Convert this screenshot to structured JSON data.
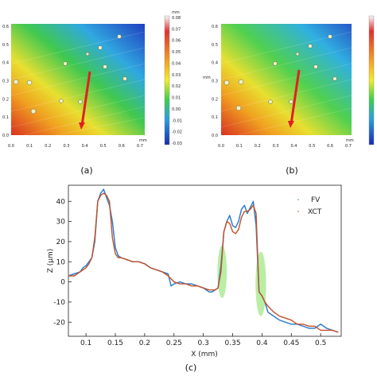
{
  "panels": {
    "a": {
      "caption": "(a)",
      "x_ticks": [
        "0.0",
        "0.1",
        "0.2",
        "0.3",
        "0.4",
        "0.5",
        "0.6",
        "0.7"
      ],
      "y_ticks": [
        "0.0",
        "0.1",
        "0.2",
        "0.3",
        "0.4",
        "0.5",
        "0.6"
      ],
      "unit": "mm",
      "colorbar_unit": "mm",
      "colorbar_ticks": [
        "0.08",
        "0.07",
        "0.06",
        "0.05",
        "0.04",
        "0.03",
        "0.02",
        "0.01",
        "0.00",
        "-0.01",
        "-0.02",
        "-0.03"
      ]
    },
    "b": {
      "caption": "(b)",
      "x_ticks": [
        "0.0",
        "0.1",
        "0.2",
        "0.3",
        "0.4",
        "0.5",
        "0.6",
        "0.7"
      ],
      "y_ticks": [
        "0.0",
        "0.1",
        "0.2",
        "0.3",
        "0.4",
        "0.5",
        "0.6"
      ],
      "unit": "mm"
    }
  },
  "chart_data": {
    "type": "line",
    "caption": "(c)",
    "xlabel": "X (mm)",
    "ylabel": "Z (μm)",
    "xlim": [
      0.07,
      0.535
    ],
    "ylim": [
      -27,
      48
    ],
    "x_ticks": [
      "0.1",
      "0.15",
      "0.2",
      "0.25",
      "0.3",
      "0.35",
      "0.4",
      "0.45",
      "0.5"
    ],
    "y_ticks": [
      "40",
      "30",
      "20",
      "10",
      "0",
      "-10",
      "-20"
    ],
    "legend": "top-right",
    "grid": false,
    "series": [
      {
        "name": "FV",
        "color": "#2f7fce",
        "x": [
          0.07,
          0.08,
          0.09,
          0.095,
          0.1,
          0.105,
          0.11,
          0.115,
          0.12,
          0.125,
          0.13,
          0.135,
          0.14,
          0.145,
          0.15,
          0.155,
          0.16,
          0.17,
          0.18,
          0.19,
          0.2,
          0.21,
          0.22,
          0.23,
          0.24,
          0.245,
          0.25,
          0.26,
          0.27,
          0.28,
          0.29,
          0.3,
          0.31,
          0.315,
          0.32,
          0.325,
          0.33,
          0.335,
          0.34,
          0.345,
          0.35,
          0.355,
          0.36,
          0.365,
          0.37,
          0.375,
          0.38,
          0.385,
          0.39,
          0.395,
          0.4,
          0.405,
          0.41,
          0.42,
          0.43,
          0.44,
          0.45,
          0.46,
          0.47,
          0.48,
          0.49,
          0.5,
          0.51,
          0.52,
          0.53
        ],
        "y": [
          3,
          4,
          5,
          7,
          8,
          10,
          12,
          20,
          40,
          44,
          46,
          42,
          38,
          30,
          17,
          13,
          12,
          11,
          10,
          10,
          9,
          7,
          6,
          5,
          4,
          -2,
          -1,
          0,
          -1,
          -1,
          -2,
          -3,
          -5,
          -5,
          -4,
          -3,
          8,
          25,
          30,
          33,
          28,
          27,
          30,
          36,
          38,
          34,
          37,
          40,
          28,
          -5,
          -7,
          -10,
          -15,
          -17,
          -19,
          -20,
          -21,
          -21,
          -22,
          -23,
          -23,
          -21,
          -23,
          -24,
          -25
        ]
      },
      {
        "name": "XCT",
        "color": "#c4502a",
        "x": [
          0.07,
          0.08,
          0.09,
          0.1,
          0.105,
          0.11,
          0.115,
          0.12,
          0.125,
          0.13,
          0.135,
          0.14,
          0.145,
          0.15,
          0.155,
          0.16,
          0.17,
          0.18,
          0.19,
          0.2,
          0.21,
          0.22,
          0.23,
          0.24,
          0.25,
          0.26,
          0.27,
          0.28,
          0.29,
          0.3,
          0.31,
          0.32,
          0.325,
          0.33,
          0.335,
          0.34,
          0.345,
          0.35,
          0.355,
          0.36,
          0.365,
          0.37,
          0.375,
          0.38,
          0.385,
          0.39,
          0.395,
          0.4,
          0.405,
          0.41,
          0.42,
          0.43,
          0.44,
          0.45,
          0.46,
          0.47,
          0.48,
          0.49,
          0.5,
          0.51,
          0.52,
          0.53
        ],
        "y": [
          3,
          3,
          5,
          7,
          9,
          12,
          22,
          40,
          43,
          44,
          43,
          40,
          22,
          14,
          12,
          12,
          11,
          10,
          10,
          9,
          7,
          6,
          5,
          3,
          0,
          -1,
          -1,
          -2,
          -2,
          -3,
          -4,
          -4,
          -3,
          5,
          25,
          30,
          29,
          25,
          24,
          26,
          32,
          35,
          35,
          36,
          38,
          34,
          -5,
          -7,
          -10,
          -12,
          -15,
          -17,
          -18,
          -19,
          -21,
          -21,
          -22,
          -22,
          -24,
          -24,
          -24,
          -25
        ]
      }
    ],
    "highlights": [
      {
        "x": 0.332,
        "y": 5,
        "rx": 0.008,
        "ry": 13
      },
      {
        "x": 0.398,
        "y": -1,
        "rx": 0.009,
        "ry": 16
      }
    ]
  }
}
